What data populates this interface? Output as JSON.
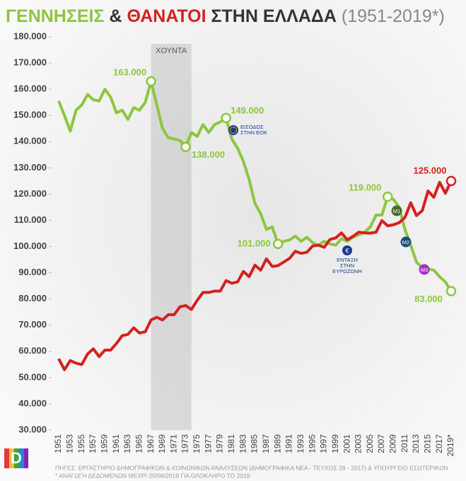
{
  "chart_data": {
    "type": "line",
    "title_parts": [
      "ΓΕΝΝΗΣΕΙΣ",
      "&",
      "ΘΑΝΑΤΟΙ",
      "ΣΤΗΝ ΕΛΛΑΔΑ",
      "(1951-2019*)"
    ],
    "categories": [
      "1951",
      null,
      "1953",
      null,
      "1955",
      null,
      "1957",
      null,
      "1959",
      null,
      "1961",
      null,
      "1963",
      null,
      "1965",
      null,
      "1967",
      null,
      "1969",
      null,
      "1971",
      null,
      "1973",
      null,
      "1975",
      null,
      "1977",
      null,
      "1979",
      null,
      "1981",
      null,
      "1983",
      null,
      "1985",
      null,
      "1987",
      null,
      "1989",
      null,
      "1991",
      null,
      "1993",
      null,
      "1995",
      null,
      "1997",
      null,
      "1999",
      null,
      "2001",
      null,
      "2003",
      null,
      "2005",
      null,
      "2007",
      null,
      "2009",
      null,
      "2011",
      null,
      "2013",
      null,
      "2015",
      null,
      "2017",
      null,
      "2019*"
    ],
    "series": [
      {
        "name": "ΓΕΝΝΗΣΕΙΣ",
        "color": "#8cc63e",
        "values": [
          155500,
          150000,
          144000,
          152000,
          154000,
          158000,
          156000,
          155500,
          160000,
          157000,
          151000,
          152000,
          148500,
          153000,
          152000,
          155000,
          163000,
          154000,
          145000,
          141500,
          141000,
          140500,
          138000,
          143500,
          142000,
          146500,
          143500,
          146500,
          147500,
          149000,
          141000,
          137500,
          132500,
          125500,
          116500,
          112500,
          106500,
          107500,
          101000,
          102000,
          102500,
          104000,
          102000,
          103500,
          101500,
          100500,
          102000,
          101000,
          100500,
          103000,
          102000,
          103500,
          104500,
          105500,
          107500,
          112000,
          112000,
          119000,
          118000,
          115000,
          106500,
          100500,
          94000,
          92000,
          91500,
          91000,
          88500,
          86500,
          83000
        ],
        "value_labels": [
          null,
          null,
          null,
          null,
          null,
          null,
          null,
          null,
          null,
          null,
          null,
          null,
          null,
          null,
          null,
          null,
          "163.000",
          null,
          null,
          null,
          null,
          null,
          "138.000",
          null,
          null,
          null,
          null,
          null,
          null,
          "149.000",
          null,
          null,
          null,
          null,
          null,
          null,
          null,
          null,
          "101.000",
          null,
          null,
          null,
          null,
          null,
          null,
          null,
          null,
          null,
          null,
          null,
          null,
          null,
          null,
          null,
          null,
          null,
          null,
          "119.000",
          null,
          null,
          null,
          null,
          null,
          null,
          null,
          null,
          null,
          null,
          "83.000"
        ]
      },
      {
        "name": "ΘΑΝΑΤΟΙ",
        "color": "#d61f1f",
        "values": [
          57200,
          53000,
          56500,
          55500,
          55000,
          59000,
          61000,
          58000,
          60500,
          60500,
          63000,
          66000,
          66500,
          69000,
          67000,
          67500,
          72000,
          73000,
          72000,
          74000,
          74000,
          77000,
          77500,
          76000,
          79500,
          82500,
          82500,
          83000,
          83000,
          87000,
          86000,
          86500,
          90500,
          88500,
          92900,
          91000,
          95300,
          92400,
          92700,
          94100,
          95500,
          98200,
          97400,
          97800,
          100200,
          100500,
          99700,
          102700,
          103300,
          105200,
          102600,
          103900,
          105500,
          105200,
          105100,
          105500,
          109900,
          107900,
          108300,
          109100,
          111100,
          116700,
          111800,
          113700,
          121200,
          118800,
          124500,
          120300,
          125000
        ],
        "value_labels": [
          null,
          null,
          null,
          null,
          null,
          null,
          null,
          null,
          null,
          null,
          null,
          null,
          null,
          null,
          null,
          null,
          null,
          null,
          null,
          null,
          null,
          null,
          null,
          null,
          null,
          null,
          null,
          null,
          null,
          null,
          null,
          null,
          null,
          null,
          null,
          null,
          null,
          null,
          null,
          null,
          null,
          null,
          null,
          null,
          null,
          null,
          null,
          null,
          null,
          null,
          null,
          null,
          null,
          null,
          null,
          null,
          null,
          null,
          null,
          null,
          null,
          null,
          null,
          null,
          null,
          null,
          null,
          null,
          "125.000"
        ]
      }
    ],
    "ylim": [
      30000,
      180000
    ],
    "yticks": [
      {
        "value": 30000,
        "label": "30.000"
      },
      {
        "value": 40000,
        "label": "40.000"
      },
      {
        "value": 50000,
        "label": "50.000"
      },
      {
        "value": 60000,
        "label": "60.000"
      },
      {
        "value": 70000,
        "label": "70.000"
      },
      {
        "value": 80000,
        "label": "80.000"
      },
      {
        "value": 90000,
        "label": "90.000"
      },
      {
        "value": 100000,
        "label": "100.000"
      },
      {
        "value": 110000,
        "label": "110.000"
      },
      {
        "value": 120000,
        "label": "120.000"
      },
      {
        "value": 130000,
        "label": "130.000"
      },
      {
        "value": 140000,
        "label": "140.000"
      },
      {
        "value": 150000,
        "label": "150.000"
      },
      {
        "value": 160000,
        "label": "160.000"
      },
      {
        "value": 170000,
        "label": "170.000"
      },
      {
        "value": 180000,
        "label": "180.000"
      }
    ],
    "band_label": "ΧΟΥΝΤΑ",
    "annotations": [
      "ΕΙΣΟΔΟΣ ΣΤΗΝ ΕΟΚ",
      "ΕΝΤΑΞΗ ΣΤΗΝ ΕΥΡΩΖΩΝΗ",
      "Μ1",
      "Μ2",
      "Μ3"
    ],
    "footnotes": [
      "ΠΗΓΕΣ: ΕΡΓΑΣΤΗΡΙΟ ΔΗΜΟΓΡΑΦΙΚΩΝ & ΚΟΙΝΩΝΙΚΩΝ ΑΝΑΛΥΣΕΩΝ (ΔΗΜΟΓΡΑΦΙΚΑ ΝΕΑ - ΤΕΥΧΟΣ 28 - 2017) & ΥΠΟΥΡΓΕΙΟ ΕΣΩΤΕΡΙΚΩΝ",
      "* ΑΝΑΓΩΓΗ ΔΕΔΟΜΕΝΩΝ ΜΕΧΡΙ 20/06/2019 ΓΙΑ ΟΛΟΚΛΗΡΟ ΤΟ 2019"
    ]
  }
}
